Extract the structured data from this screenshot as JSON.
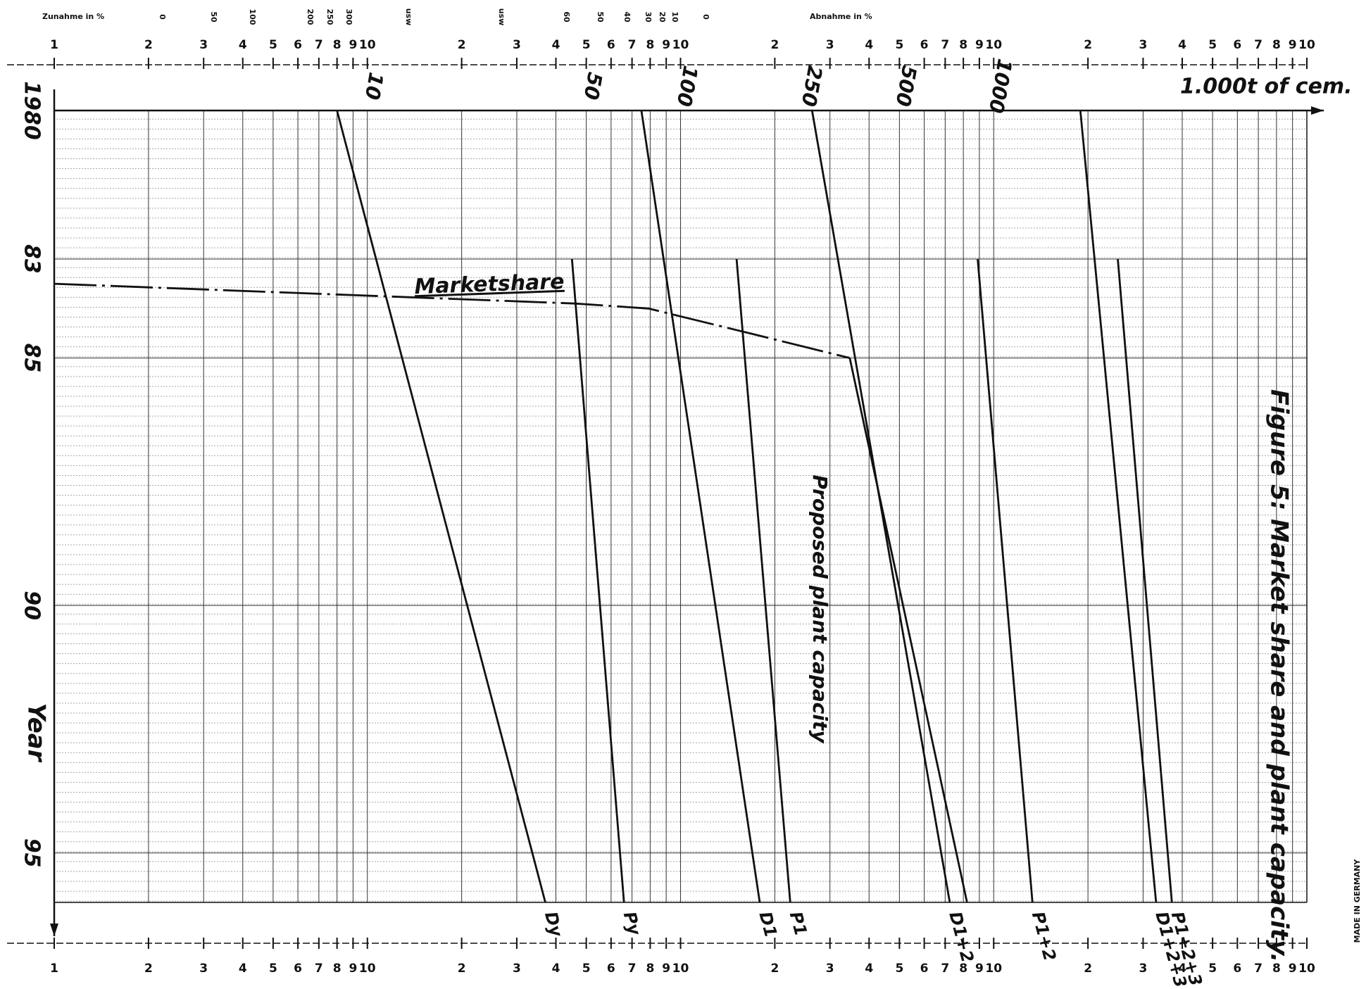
{
  "chart_data": {
    "type": "line",
    "title": "Figure 5: Market share and plant capacity.",
    "x_label": "1.000t of cem.",
    "y_label": "Year",
    "annotation": "Proposed plant capacity",
    "footer": "MADE IN GERMANY",
    "log_x": true,
    "grid": true,
    "color": "#111111",
    "xlim": [
      1,
      10000
    ],
    "ylim": [
      1980,
      1996
    ],
    "xticks": [
      1,
      2,
      3,
      4,
      5,
      6,
      7,
      8,
      9,
      10,
      {
        "value": 20,
        "label": "2"
      },
      {
        "value": 30,
        "label": "3"
      },
      {
        "value": 40,
        "label": "4"
      },
      {
        "value": 50,
        "label": "5"
      },
      {
        "value": 60,
        "label": "6"
      },
      {
        "value": 70,
        "label": "7"
      },
      {
        "value": 80,
        "label": "8"
      },
      {
        "value": 90,
        "label": "9"
      },
      {
        "value": 100,
        "label": "10"
      },
      {
        "value": 200,
        "label": "2"
      },
      {
        "value": 300,
        "label": "3"
      },
      {
        "value": 400,
        "label": "4"
      },
      {
        "value": 500,
        "label": "5"
      },
      {
        "value": 600,
        "label": "6"
      },
      {
        "value": 700,
        "label": "7"
      },
      {
        "value": 800,
        "label": "8"
      },
      {
        "value": 900,
        "label": "9"
      },
      {
        "value": 1000,
        "label": "10"
      },
      {
        "value": 2000,
        "label": "2"
      },
      {
        "value": 3000,
        "label": "3"
      },
      {
        "value": 4000,
        "label": "4"
      },
      {
        "value": 5000,
        "label": "5"
      },
      {
        "value": 6000,
        "label": "6"
      },
      {
        "value": 7000,
        "label": "7"
      },
      {
        "value": 8000,
        "label": "8"
      },
      {
        "value": 9000,
        "label": "9"
      },
      {
        "value": 10000,
        "label": "10"
      }
    ],
    "yticks": [
      1980,
      {
        "value": 1983,
        "label": "83"
      },
      {
        "value": 1985,
        "label": "85"
      },
      {
        "value": 1990,
        "label": "90"
      },
      {
        "value": 1995,
        "label": "95"
      }
    ],
    "hand_ticks": [
      10,
      50,
      100,
      250,
      500,
      1000
    ],
    "top_scale": [
      "Zunahme in %",
      "0",
      "50",
      "100",
      "200",
      "250",
      "300",
      "usw",
      "usw",
      "60",
      "50",
      "40",
      "30",
      "20",
      "10",
      "0",
      "Abnahme in %"
    ],
    "series": [
      {
        "name": "Marketshare",
        "x": [
          1,
          46,
          79,
          166,
          347
        ],
        "values": [
          1983.5,
          1983.9,
          1984,
          1984.5,
          1985
        ]
      },
      {
        "name": "Dy",
        "x": [
          8,
          37
        ],
        "values": [
          1980,
          1996
        ]
      },
      {
        "name": "Py",
        "x": [
          45,
          66
        ],
        "values": [
          1983,
          1996
        ]
      },
      {
        "name": "D1",
        "x": [
          75,
          179
        ],
        "values": [
          1980,
          1996
        ]
      },
      {
        "name": "P1",
        "x": [
          151,
          224
        ],
        "values": [
          1983,
          1996
        ]
      },
      {
        "name": "D1+2",
        "x": [
          263,
          724
        ],
        "values": [
          1980,
          1996
        ]
      },
      {
        "x": [
          347,
          822
        ],
        "values": [
          1985,
          1996
        ]
      },
      {
        "name": "P1+2",
        "x": [
          889,
          1330
        ],
        "values": [
          1983,
          1996
        ]
      },
      {
        "name": "D1+2+3",
        "x": [
          1891,
          3300
        ],
        "values": [
          1980,
          1996
        ]
      },
      {
        "name": "P1+2+3",
        "x": [
          2490,
          3706
        ],
        "values": [
          1983,
          1996
        ]
      }
    ]
  }
}
